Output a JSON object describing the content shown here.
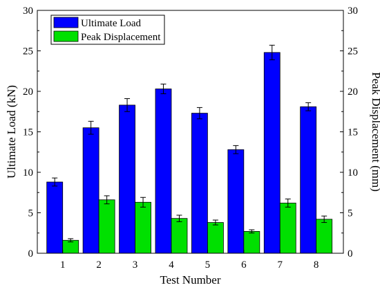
{
  "chart_data": {
    "type": "bar",
    "categories": [
      "1",
      "2",
      "3",
      "4",
      "5",
      "6",
      "7",
      "8"
    ],
    "xlabel": "Test Number",
    "ylabel": "Ultimate Load (kN)",
    "y2label": "Peak Displacement (mm)",
    "ylim": [
      0,
      30
    ],
    "y2lim": [
      0,
      30
    ],
    "yticks": [
      0,
      5,
      10,
      15,
      20,
      25,
      30
    ],
    "grid": false,
    "legend_position": "top-left",
    "series": [
      {
        "name": "Ultimate Load",
        "color": "#0000ff",
        "axis": "left",
        "values": [
          8.8,
          15.5,
          18.3,
          20.3,
          17.3,
          12.8,
          24.8,
          18.1
        ],
        "errors": [
          0.5,
          0.8,
          0.8,
          0.6,
          0.7,
          0.5,
          0.9,
          0.5
        ]
      },
      {
        "name": "Peak Displacement",
        "color": "#00e000",
        "axis": "right",
        "values": [
          1.6,
          6.6,
          6.3,
          4.3,
          3.8,
          2.7,
          6.2,
          4.2
        ],
        "errors": [
          0.2,
          0.5,
          0.6,
          0.4,
          0.3,
          0.2,
          0.5,
          0.4
        ]
      }
    ]
  }
}
